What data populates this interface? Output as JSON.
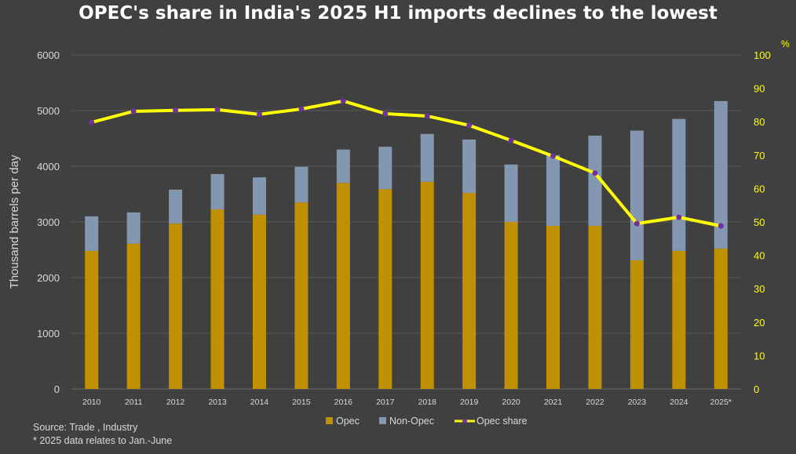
{
  "chart_data": {
    "type": "bar",
    "title": "OPEC's share in India's 2025 H1 imports declines to the lowest",
    "ylabel": "Thousand barrels per day",
    "y2label": "%",
    "ylim": [
      0,
      6000
    ],
    "y2lim": [
      0,
      100
    ],
    "yticks": [
      0,
      1000,
      2000,
      3000,
      4000,
      5000,
      6000
    ],
    "y2ticks": [
      0,
      10,
      20,
      30,
      40,
      50,
      60,
      70,
      80,
      90,
      100
    ],
    "grid": true,
    "stacked": true,
    "legend_position": "bottom",
    "categories": [
      "2010",
      "2011",
      "2012",
      "2013",
      "2014",
      "2015",
      "2016",
      "2017",
      "2018",
      "2019",
      "2020",
      "2021",
      "2022",
      "2023",
      "2024",
      "2025*"
    ],
    "series": [
      {
        "name": "Opec",
        "type": "bar",
        "axis": "left",
        "color": "#bf9000",
        "values": [
          2480,
          2610,
          2970,
          3225,
          3130,
          3350,
          3700,
          3590,
          3720,
          3520,
          3000,
          2930,
          2930,
          2310,
          2480,
          2520
        ]
      },
      {
        "name": "Non-Opec",
        "type": "bar",
        "axis": "left",
        "color": "#8497b0",
        "values": [
          620,
          560,
          610,
          635,
          670,
          640,
          600,
          760,
          860,
          960,
          1030,
          1270,
          1620,
          2330,
          2370,
          2650
        ]
      },
      {
        "name": "Opec share",
        "type": "line",
        "axis": "right",
        "color": "#ffff00",
        "marker_color": "#7030a0",
        "values": [
          79.8,
          83.1,
          83.4,
          83.6,
          82.2,
          83.8,
          86.2,
          82.4,
          81.7,
          78.9,
          74.4,
          69.7,
          64.6,
          49.5,
          51.4,
          48.8
        ]
      }
    ]
  },
  "notes": {
    "source": "Source: Trade , Industry",
    "footnote": "* 2025 data relates to Jan.-June"
  }
}
